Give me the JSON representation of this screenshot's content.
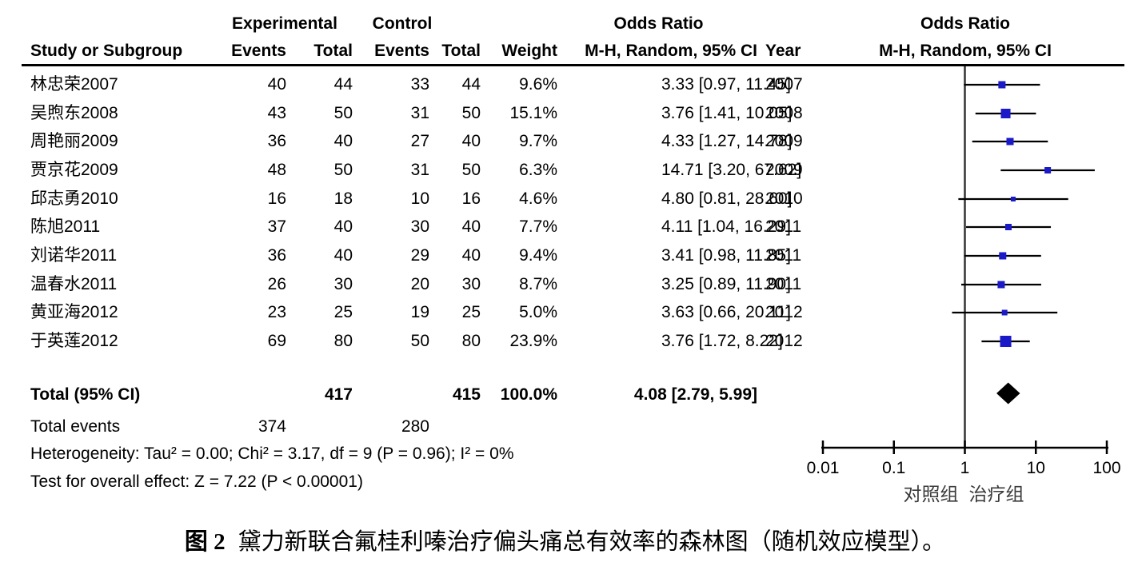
{
  "header": {
    "study_col": "Study or Subgroup",
    "exp_group": "Experimental",
    "ctrl_group": "Control",
    "exp_events": "Events",
    "exp_total": "Total",
    "ctrl_events": "Events",
    "ctrl_total": "Total",
    "weight": "Weight",
    "or_left_line1": "Odds Ratio",
    "or_left_line2": "M-H, Random, 95% CI",
    "year": "Year",
    "or_right_line1": "Odds Ratio",
    "or_right_line2": "M-H, Random, 95% CI"
  },
  "studies": [
    {
      "name": "林忠荣2007",
      "exp_events": "40",
      "exp_total": "44",
      "ctrl_events": "33",
      "ctrl_total": "44",
      "weight": "9.6%",
      "or_text": "3.33 [0.97, 11.45]",
      "year": "2007",
      "or": 3.33,
      "ci_low": 0.97,
      "ci_high": 11.45,
      "weight_pct": 9.6
    },
    {
      "name": "吴煦东2008",
      "exp_events": "43",
      "exp_total": "50",
      "ctrl_events": "31",
      "ctrl_total": "50",
      "weight": "15.1%",
      "or_text": "3.76 [1.41, 10.05]",
      "year": "2008",
      "or": 3.76,
      "ci_low": 1.41,
      "ci_high": 10.05,
      "weight_pct": 15.1
    },
    {
      "name": "周艳丽2009",
      "exp_events": "36",
      "exp_total": "40",
      "ctrl_events": "27",
      "ctrl_total": "40",
      "weight": "9.7%",
      "or_text": "4.33 [1.27, 14.78]",
      "year": "2009",
      "or": 4.33,
      "ci_low": 1.27,
      "ci_high": 14.78,
      "weight_pct": 9.7
    },
    {
      "name": "贾京花2009",
      "exp_events": "48",
      "exp_total": "50",
      "ctrl_events": "31",
      "ctrl_total": "50",
      "weight": "6.3%",
      "or_text": "14.71 [3.20, 67.62]",
      "year": "2009",
      "or": 14.71,
      "ci_low": 3.2,
      "ci_high": 67.62,
      "weight_pct": 6.3
    },
    {
      "name": "邱志勇2010",
      "exp_events": "16",
      "exp_total": "18",
      "ctrl_events": "10",
      "ctrl_total": "16",
      "weight": "4.6%",
      "or_text": "4.80 [0.81, 28.60]",
      "year": "2010",
      "or": 4.8,
      "ci_low": 0.81,
      "ci_high": 28.6,
      "weight_pct": 4.6
    },
    {
      "name": "陈旭2011",
      "exp_events": "37",
      "exp_total": "40",
      "ctrl_events": "30",
      "ctrl_total": "40",
      "weight": "7.7%",
      "or_text": "4.11 [1.04, 16.29]",
      "year": "2011",
      "or": 4.11,
      "ci_low": 1.04,
      "ci_high": 16.29,
      "weight_pct": 7.7
    },
    {
      "name": "刘诺华2011",
      "exp_events": "36",
      "exp_total": "40",
      "ctrl_events": "29",
      "ctrl_total": "40",
      "weight": "9.4%",
      "or_text": "3.41 [0.98, 11.85]",
      "year": "2011",
      "or": 3.41,
      "ci_low": 0.98,
      "ci_high": 11.85,
      "weight_pct": 9.4
    },
    {
      "name": "温春水2011",
      "exp_events": "26",
      "exp_total": "30",
      "ctrl_events": "20",
      "ctrl_total": "30",
      "weight": "8.7%",
      "or_text": "3.25 [0.89, 11.90]",
      "year": "2011",
      "or": 3.25,
      "ci_low": 0.89,
      "ci_high": 11.9,
      "weight_pct": 8.7
    },
    {
      "name": "黄亚海2012",
      "exp_events": "23",
      "exp_total": "25",
      "ctrl_events": "19",
      "ctrl_total": "25",
      "weight": "5.0%",
      "or_text": "3.63 [0.66, 20.11]",
      "year": "2012",
      "or": 3.63,
      "ci_low": 0.66,
      "ci_high": 20.11,
      "weight_pct": 5.0
    },
    {
      "name": "于英莲2012",
      "exp_events": "69",
      "exp_total": "80",
      "ctrl_events": "50",
      "ctrl_total": "80",
      "weight": "23.9%",
      "or_text": "3.76 [1.72, 8.22]",
      "year": "2012",
      "or": 3.76,
      "ci_low": 1.72,
      "ci_high": 8.22,
      "weight_pct": 23.9
    }
  ],
  "total_row": {
    "label": "Total (95% CI)",
    "exp_total": "417",
    "ctrl_total": "415",
    "weight": "100.0%",
    "or_text": "4.08 [2.79, 5.99]",
    "or": 4.08,
    "ci_low": 2.79,
    "ci_high": 5.99
  },
  "total_events": {
    "label": "Total events",
    "exp": "374",
    "ctrl": "280"
  },
  "heterogeneity": "Heterogeneity: Tau² = 0.00; Chi² = 3.17, df = 9 (P = 0.96); I² = 0%",
  "overall_effect": "Test for overall effect: Z = 7.22 (P < 0.00001)",
  "axis": {
    "ticks": [
      {
        "value": 0.01,
        "label": "0.01"
      },
      {
        "value": 0.1,
        "label": "0.1"
      },
      {
        "value": 1,
        "label": "1"
      },
      {
        "value": 10,
        "label": "10"
      },
      {
        "value": 100,
        "label": "100"
      }
    ],
    "left_group_label": "对照组",
    "right_group_label": "治疗组"
  },
  "caption": {
    "prefix": "图 2",
    "text": "黛力新联合氟桂利嗪治疗偏头痛总有效率的森林图（随机效应模型）。"
  },
  "colors": {
    "marker": "#1a1ac8",
    "diamond": "#000000",
    "line": "#000000",
    "ref_line": "#333333",
    "group_label": "#3a3a3a"
  },
  "chart_data": {
    "type": "scatter",
    "subtype": "forest_plot",
    "title": "Odds Ratio M-H, Random, 95% CI",
    "x_scale": "log10",
    "xlim": [
      0.01,
      100
    ],
    "x_ticks": [
      0.01,
      0.1,
      1,
      10,
      100
    ],
    "favours_left": "对照组",
    "favours_right": "治疗组",
    "studies": [
      {
        "label": "林忠荣2007",
        "or": 3.33,
        "ci": [
          0.97,
          11.45
        ],
        "weight_pct": 9.6
      },
      {
        "label": "吴煦东2008",
        "or": 3.76,
        "ci": [
          1.41,
          10.05
        ],
        "weight_pct": 15.1
      },
      {
        "label": "周艳丽2009",
        "or": 4.33,
        "ci": [
          1.27,
          14.78
        ],
        "weight_pct": 9.7
      },
      {
        "label": "贾京花2009",
        "or": 14.71,
        "ci": [
          3.2,
          67.62
        ],
        "weight_pct": 6.3
      },
      {
        "label": "邱志勇2010",
        "or": 4.8,
        "ci": [
          0.81,
          28.6
        ],
        "weight_pct": 4.6
      },
      {
        "label": "陈旭2011",
        "or": 4.11,
        "ci": [
          1.04,
          16.29
        ],
        "weight_pct": 7.7
      },
      {
        "label": "刘诺华2011",
        "or": 3.41,
        "ci": [
          0.98,
          11.85
        ],
        "weight_pct": 9.4
      },
      {
        "label": "温春水2011",
        "or": 3.25,
        "ci": [
          0.89,
          11.9
        ],
        "weight_pct": 8.7
      },
      {
        "label": "黄亚海2012",
        "or": 3.63,
        "ci": [
          0.66,
          20.11
        ],
        "weight_pct": 5.0
      },
      {
        "label": "于英莲2012",
        "or": 3.76,
        "ci": [
          1.72,
          8.22
        ],
        "weight_pct": 23.9
      }
    ],
    "summary": {
      "label": "Total (95% CI)",
      "or": 4.08,
      "ci": [
        2.79,
        5.99
      ],
      "weight_pct": 100.0,
      "heterogeneity": "Tau² = 0.00; Chi² = 3.17, df = 9 (P = 0.96); I² = 0%",
      "overall_effect": "Z = 7.22 (P < 0.00001)"
    }
  }
}
